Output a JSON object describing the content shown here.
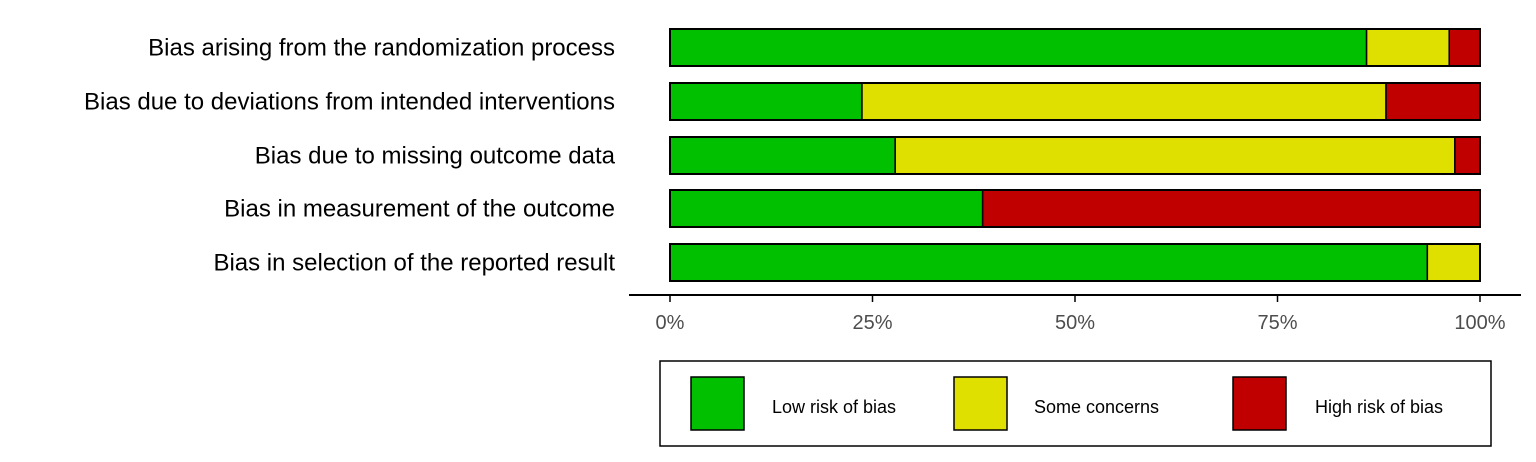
{
  "chart_data": {
    "type": "bar",
    "orientation": "horizontal",
    "stacked": true,
    "categories": [
      "Bias arising from the randomization process",
      "Bias due to deviations from intended interventions",
      "Bias due to missing outcome data",
      "Bias in measurement of the outcome",
      "Bias in selection of the reported result"
    ],
    "series": [
      {
        "name": "Low risk of bias",
        "color": "#00c000",
        "values": [
          86,
          23.7,
          27.8,
          38.6,
          93.5
        ]
      },
      {
        "name": "Some concerns",
        "color": "#e0e000",
        "values": [
          10.2,
          64.7,
          69.1,
          0,
          6.5
        ]
      },
      {
        "name": "High risk of bias",
        "color": "#c00000",
        "values": [
          3.8,
          11.6,
          3.1,
          61.4,
          0
        ]
      }
    ],
    "xlim": [
      0,
      100
    ],
    "x_ticks": [
      "0%",
      "25%",
      "50%",
      "75%",
      "100%"
    ],
    "x_tick_values": [
      0,
      25,
      50,
      75,
      100
    ],
    "title": "",
    "xlabel": "",
    "ylabel": "",
    "grid": false,
    "legend_position": "bottom"
  }
}
